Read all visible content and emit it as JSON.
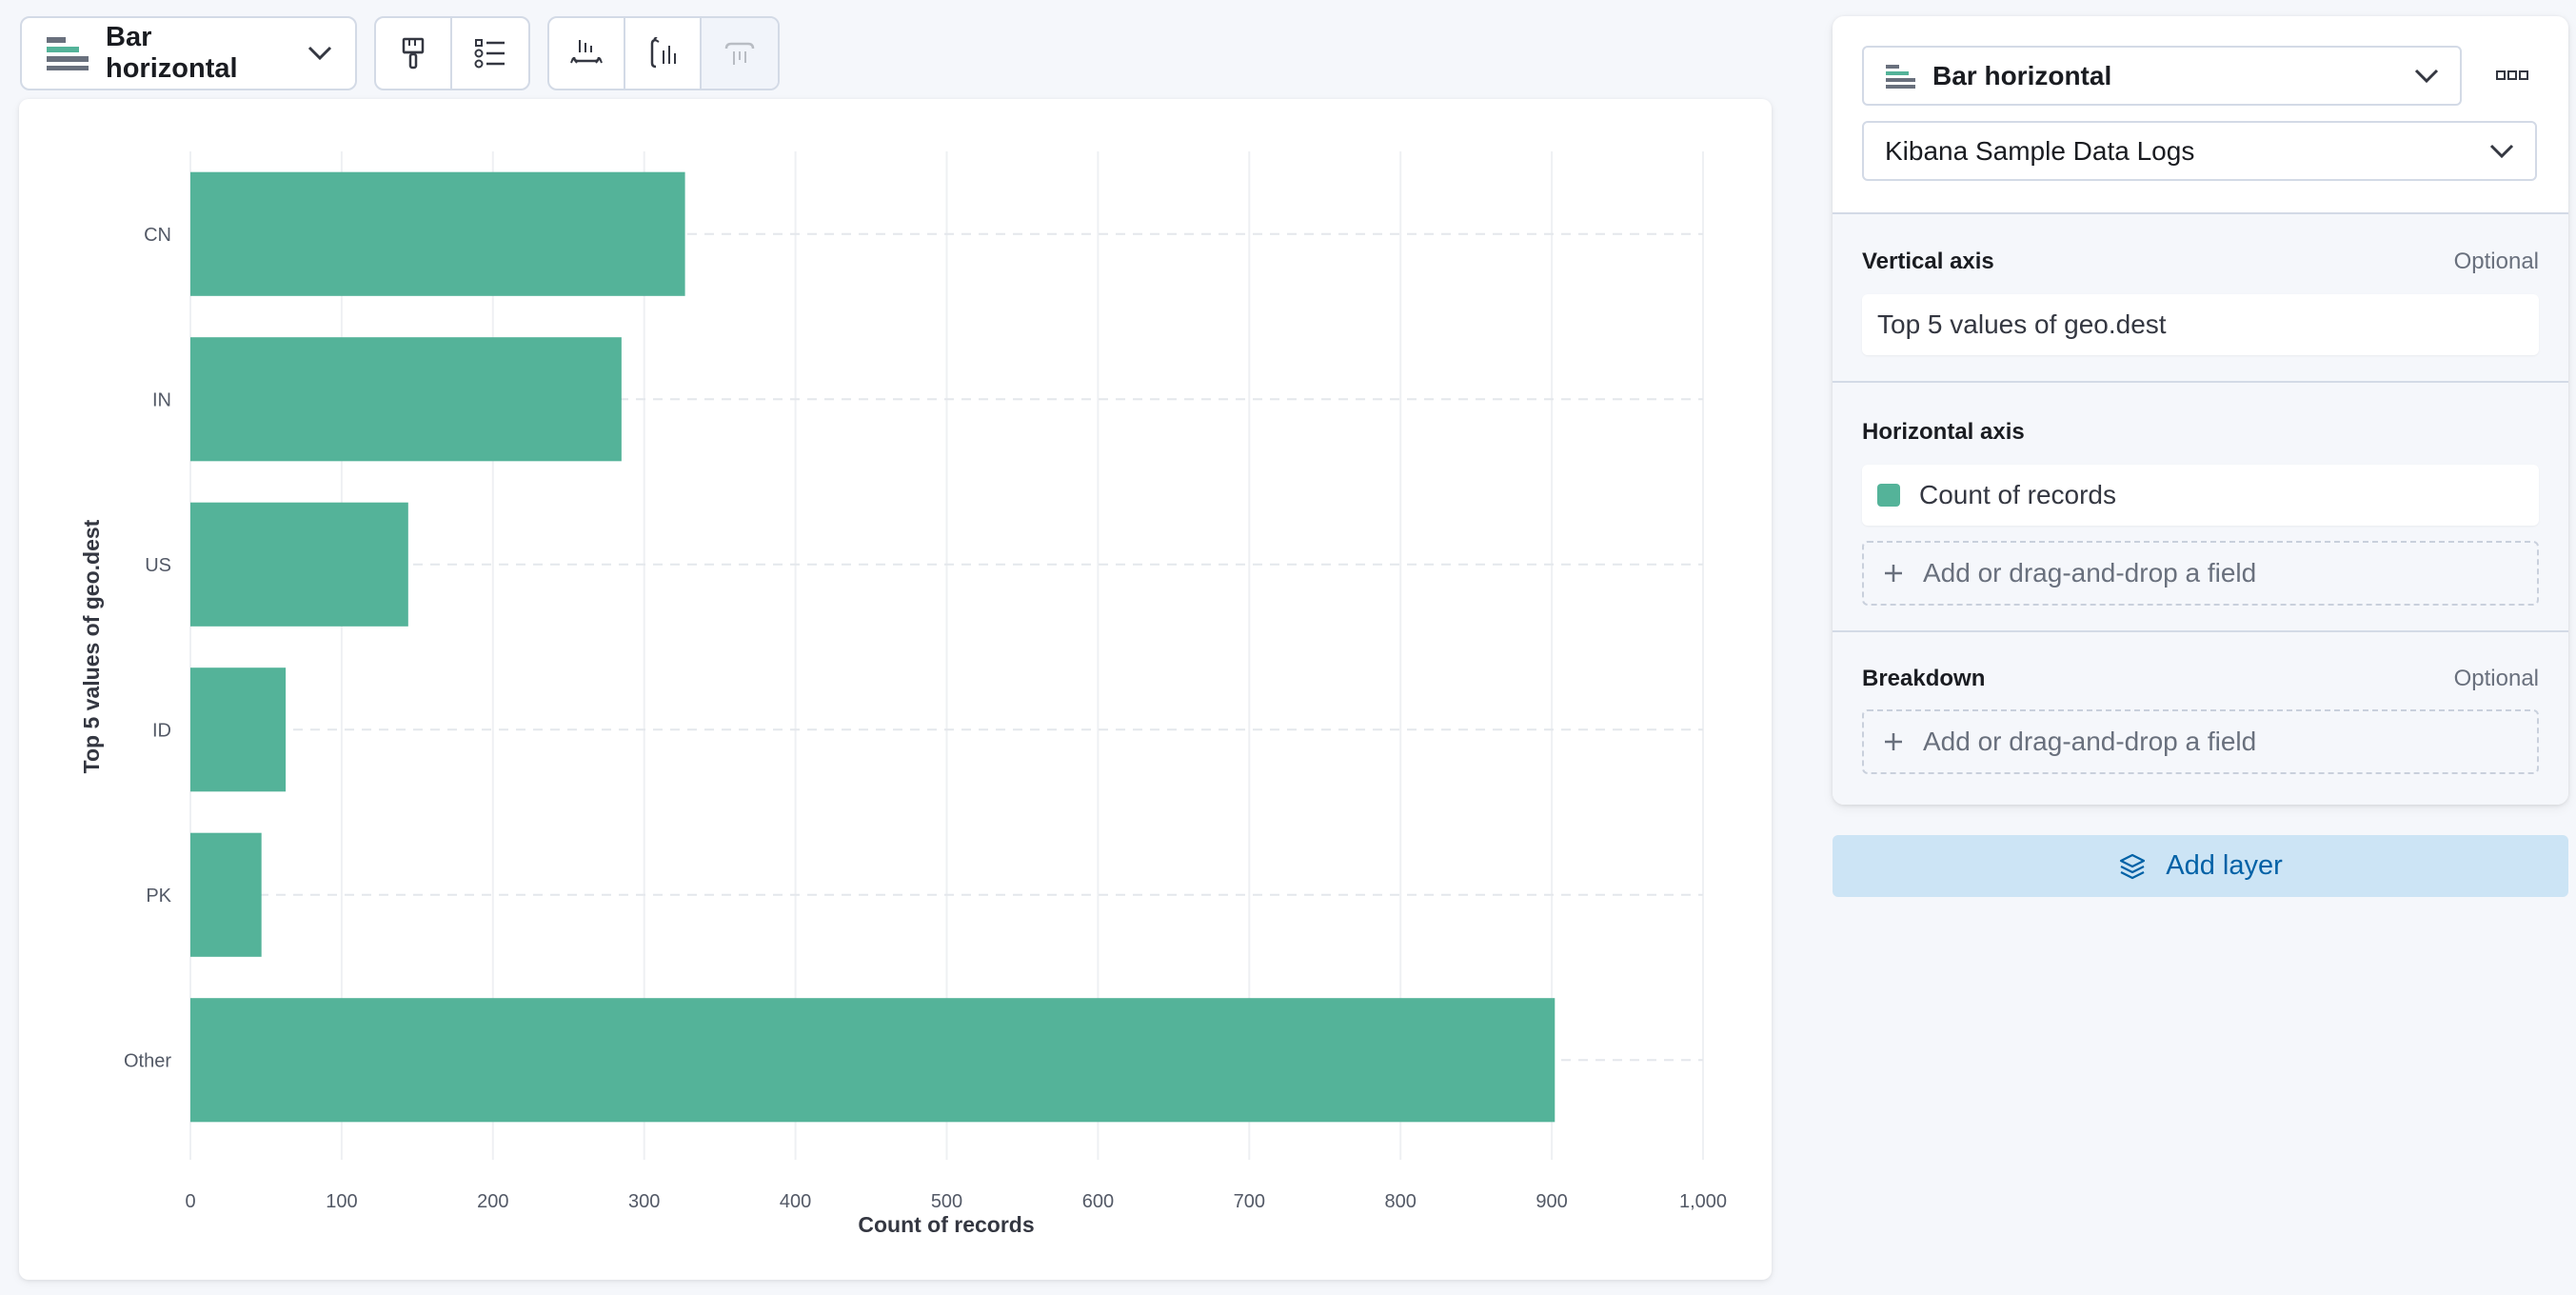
{
  "toolbar": {
    "chart_type_label": "Bar horizontal"
  },
  "config": {
    "chart_type_select": "Bar horizontal",
    "index_select": "Kibana Sample Data Logs",
    "vertical_axis": {
      "title": "Vertical axis",
      "optional": "Optional",
      "value": "Top 5 values of geo.dest"
    },
    "horizontal_axis": {
      "title": "Horizontal axis",
      "value": "Count of records",
      "add_field": "Add or drag-and-drop a field"
    },
    "breakdown": {
      "title": "Breakdown",
      "optional": "Optional",
      "add_field": "Add or drag-and-drop a field"
    },
    "add_layer": "Add layer"
  },
  "colors": {
    "bar": "#54b399",
    "accent": "#0061a6"
  },
  "icons": {
    "chart_type": "bar-horizontal-icon",
    "brush": "paintbrush-icon",
    "legend": "legend-list-icon",
    "bottom_axis": "bottom-axis-icon",
    "left_axis": "left-axis-icon",
    "right_axis": "right-axis-icon",
    "more": "more-dots-icon",
    "chevron": "chevron-down-icon",
    "plus": "plus-icon",
    "layers": "layers-icon"
  },
  "chart_data": {
    "type": "bar",
    "orientation": "horizontal",
    "categories": [
      "CN",
      "IN",
      "US",
      "ID",
      "PK",
      "Other"
    ],
    "values": [
      327,
      285,
      144,
      63,
      47,
      902
    ],
    "xlabel": "Count of records",
    "ylabel": "Top 5 values of geo.dest",
    "xlim": [
      0,
      1000
    ],
    "xticks": [
      "0",
      "100",
      "200",
      "300",
      "400",
      "500",
      "600",
      "700",
      "800",
      "900",
      "1,000"
    ],
    "grid": true
  }
}
